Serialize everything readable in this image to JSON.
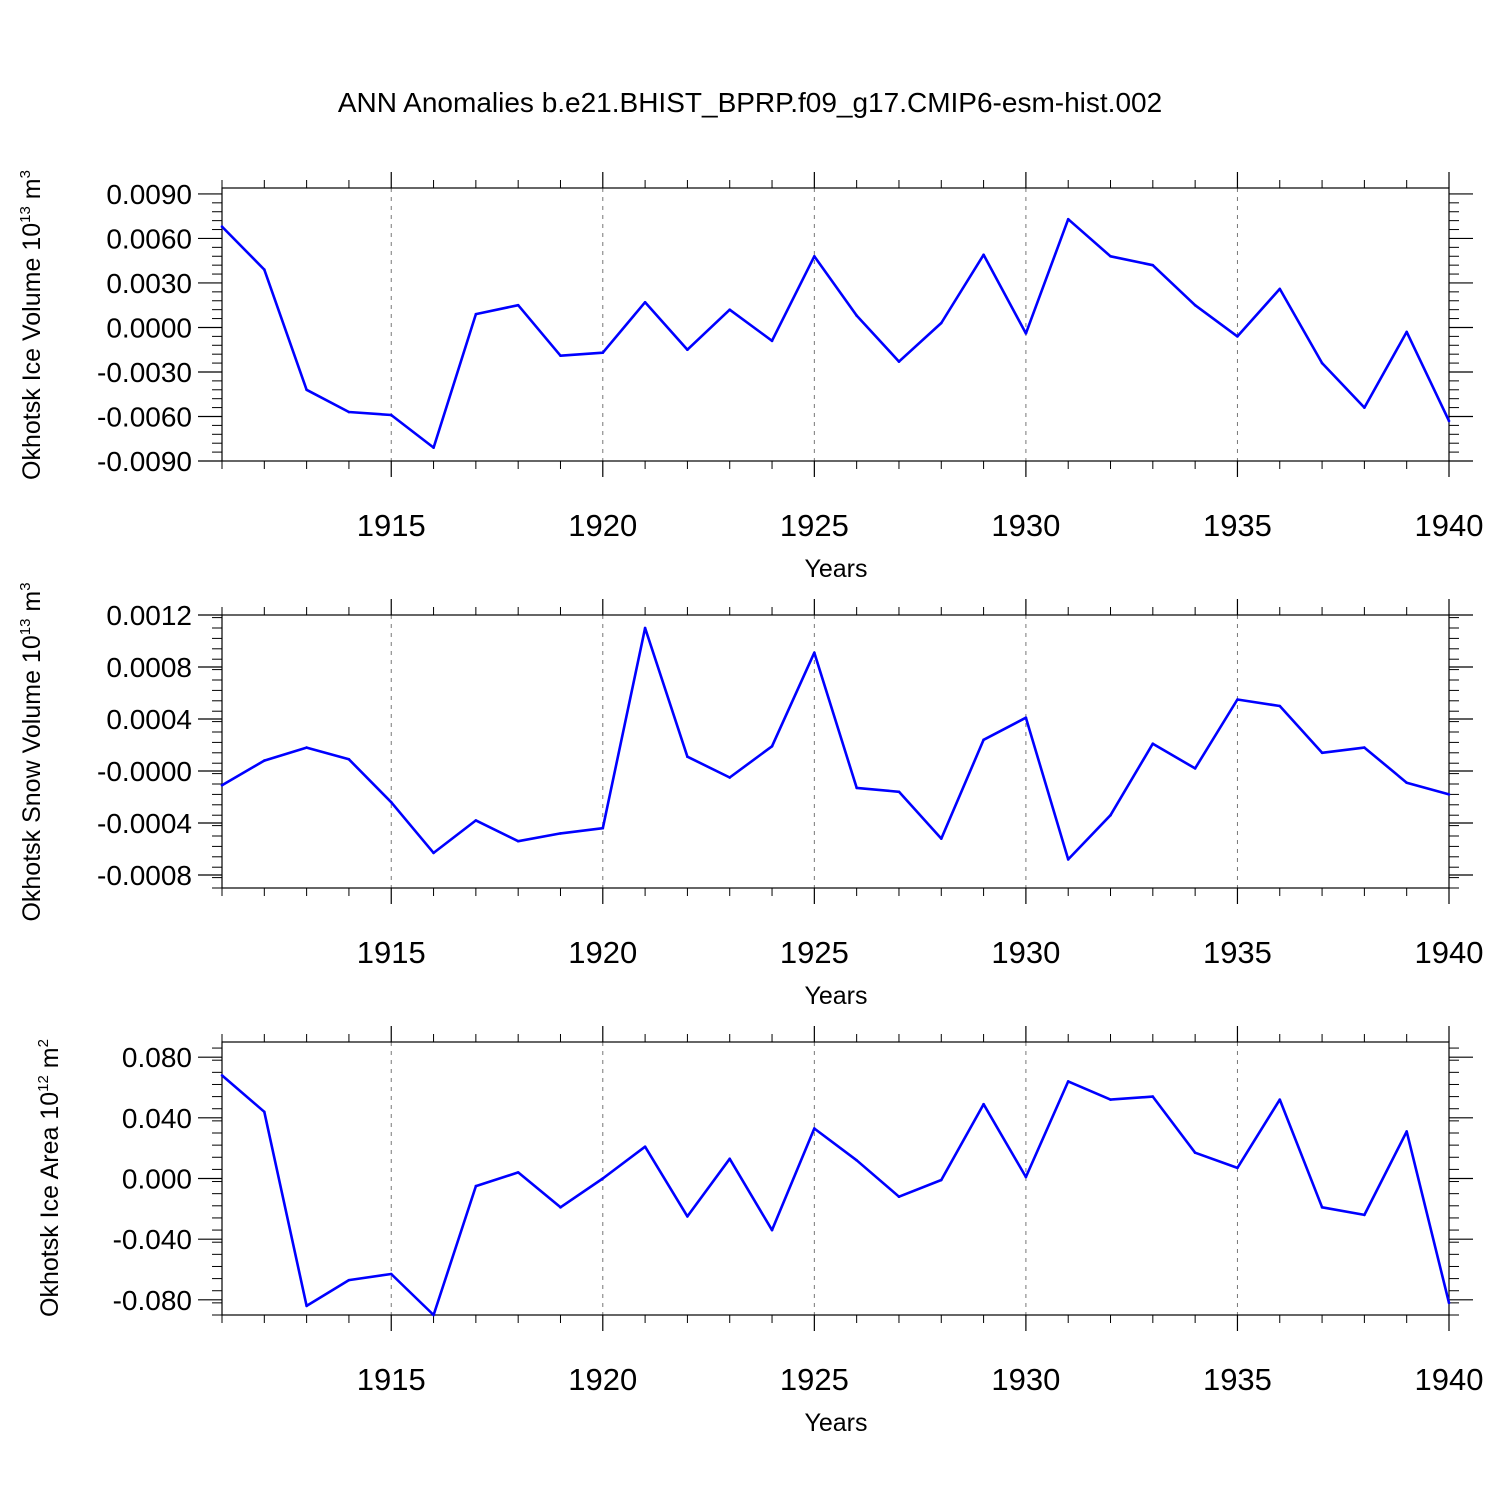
{
  "title": "ANN Anomalies b.e21.BHIST_BPRP.f09_g17.CMIP6-esm-hist.002",
  "series_color": "#0000ff",
  "chart_data": [
    {
      "type": "line",
      "ylabel_main": "Okhotsk Ice Volume 10",
      "ylabel_exp": "13",
      "ylabel_unit": " m",
      "ylabel_unit_exp": "3",
      "xlabel": "Years",
      "xlim": [
        1911,
        1940
      ],
      "ylim": [
        -0.009,
        0.0094
      ],
      "yticks": [
        -0.009,
        -0.006,
        -0.003,
        0.0,
        0.003,
        0.006,
        0.009
      ],
      "ytick_labels": [
        "-0.0090",
        "-0.0060",
        "-0.0030",
        "0.0000",
        "0.0030",
        "0.0060",
        "0.0090"
      ],
      "xticks": [
        1915,
        1920,
        1925,
        1930,
        1935,
        1940
      ],
      "xtick_labels": [
        "1915",
        "1920",
        "1925",
        "1930",
        "1935",
        "1940"
      ],
      "x": [
        1911,
        1912,
        1913,
        1914,
        1915,
        1916,
        1917,
        1918,
        1919,
        1920,
        1921,
        1922,
        1923,
        1924,
        1925,
        1926,
        1927,
        1928,
        1929,
        1930,
        1931,
        1932,
        1933,
        1934,
        1935,
        1936,
        1937,
        1938,
        1939,
        1940
      ],
      "values": [
        0.0068,
        0.0039,
        -0.0042,
        -0.0057,
        -0.0059,
        -0.0081,
        0.0009,
        0.0015,
        -0.0019,
        -0.0017,
        0.0017,
        -0.0015,
        0.0012,
        -0.0009,
        0.0048,
        0.0008,
        -0.0023,
        0.0003,
        0.0049,
        -0.0004,
        0.0073,
        0.0048,
        0.0042,
        0.0015,
        -0.0006,
        0.0026,
        -0.0024,
        -0.0054,
        -0.0003,
        -0.0063
      ]
    },
    {
      "type": "line",
      "ylabel_main": "Okhotsk Snow Volume 10",
      "ylabel_exp": "13",
      "ylabel_unit": " m",
      "ylabel_unit_exp": "3",
      "xlabel": "Years",
      "xlim": [
        1911,
        1940
      ],
      "ylim": [
        -0.0009,
        0.0012
      ],
      "yticks": [
        -0.0008,
        -0.0004,
        0.0,
        0.0004,
        0.0008,
        0.0012
      ],
      "ytick_labels": [
        "-0.0008",
        "-0.0004",
        "-0.0000",
        "0.0004",
        "0.0008",
        "0.0012"
      ],
      "xticks": [
        1915,
        1920,
        1925,
        1930,
        1935,
        1940
      ],
      "xtick_labels": [
        "1915",
        "1920",
        "1925",
        "1930",
        "1935",
        "1940"
      ],
      "x": [
        1911,
        1912,
        1913,
        1914,
        1915,
        1916,
        1917,
        1918,
        1919,
        1920,
        1921,
        1922,
        1923,
        1924,
        1925,
        1926,
        1927,
        1928,
        1929,
        1930,
        1931,
        1932,
        1933,
        1934,
        1935,
        1936,
        1937,
        1938,
        1939,
        1940
      ],
      "values": [
        -0.00011,
        8e-05,
        0.00018,
        9e-05,
        -0.00024,
        -0.00063,
        -0.00038,
        -0.00054,
        -0.00048,
        -0.00044,
        0.0011,
        0.00011,
        -5e-05,
        0.00019,
        0.00091,
        -0.00013,
        -0.00016,
        -0.00052,
        0.00024,
        0.00041,
        -0.00068,
        -0.00034,
        0.00021,
        2e-05,
        0.00055,
        0.0005,
        0.00014,
        0.00018,
        -9e-05,
        -0.00018
      ]
    },
    {
      "type": "line",
      "ylabel_main": "Okhotsk Ice Area 10",
      "ylabel_exp": "12",
      "ylabel_unit": " m",
      "ylabel_unit_exp": "2",
      "xlabel": "Years",
      "xlim": [
        1911,
        1940
      ],
      "ylim": [
        -0.09,
        0.09
      ],
      "yticks": [
        -0.08,
        -0.04,
        0.0,
        0.04,
        0.08
      ],
      "ytick_labels": [
        "-0.080",
        "-0.040",
        "0.000",
        "0.040",
        "0.080"
      ],
      "xticks": [
        1915,
        1920,
        1925,
        1930,
        1935,
        1940
      ],
      "xtick_labels": [
        "1915",
        "1920",
        "1925",
        "1930",
        "1935",
        "1940"
      ],
      "x": [
        1911,
        1912,
        1913,
        1914,
        1915,
        1916,
        1917,
        1918,
        1919,
        1920,
        1921,
        1922,
        1923,
        1924,
        1925,
        1926,
        1927,
        1928,
        1929,
        1930,
        1931,
        1932,
        1933,
        1934,
        1935,
        1936,
        1937,
        1938,
        1939,
        1940
      ],
      "values": [
        0.068,
        0.044,
        -0.084,
        -0.067,
        -0.063,
        -0.09,
        -0.005,
        0.004,
        -0.019,
        0.0,
        0.021,
        -0.025,
        0.013,
        -0.034,
        0.033,
        0.012,
        -0.012,
        -0.001,
        0.049,
        0.001,
        0.064,
        0.052,
        0.054,
        0.017,
        0.007,
        0.052,
        -0.019,
        -0.024,
        0.031,
        -0.082
      ]
    }
  ]
}
